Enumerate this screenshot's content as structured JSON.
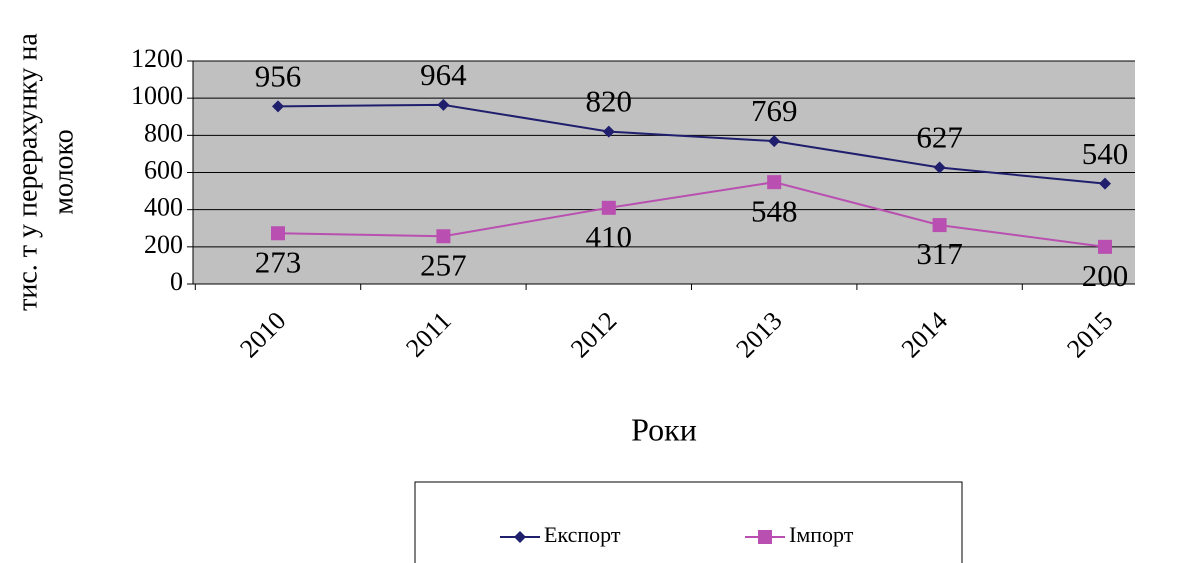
{
  "chart_data": {
    "type": "line",
    "y_label": [
      "тис. т у перерахунку на",
      "молоко"
    ],
    "x_label": "Роки",
    "categories": [
      "2010",
      "2011",
      "2012",
      "2013",
      "2014",
      "2015"
    ],
    "series": [
      {
        "name": "Експорт",
        "color": "#1f1f6e",
        "marker": "diamond",
        "values": [
          956,
          964,
          820,
          769,
          627,
          540
        ]
      },
      {
        "name": "Імпорт",
        "color": "#b94fb0",
        "marker": "square",
        "values": [
          273,
          257,
          410,
          548,
          317,
          200
        ]
      }
    ],
    "ylim": [
      0,
      1200
    ],
    "yticks": [
      0,
      200,
      400,
      600,
      800,
      1000,
      1200
    ],
    "grid": true,
    "legend": "bottom"
  }
}
